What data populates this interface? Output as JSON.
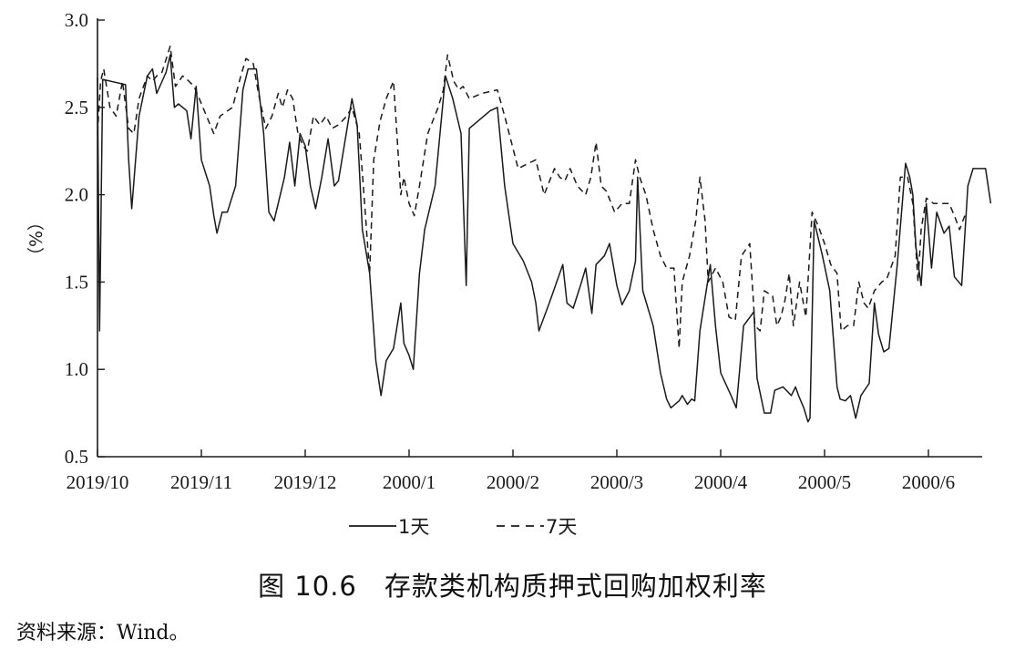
{
  "caption": "图 10.6　存款类机构质押式回购加权利率",
  "source": "资料来源：Wind。",
  "chart_data": {
    "type": "line",
    "ylabel": "（%）",
    "ylim": [
      0.5,
      3.0
    ],
    "yticks": [
      "0.5",
      "1.0",
      "1.5",
      "2.0",
      "2.5",
      "3.0"
    ],
    "xticks": [
      "2019/10",
      "2019/11",
      "2019/12",
      "2000/1",
      "2000/2",
      "2000/3",
      "2000/4",
      "2000/5",
      "2000/6"
    ],
    "grid": false,
    "legend_position": "bottom",
    "series": [
      {
        "name": "1天",
        "style": "solid",
        "points": [
          [
            0.0,
            2.67
          ],
          [
            0.02,
            1.22
          ],
          [
            0.05,
            2.66
          ],
          [
            0.27,
            2.63
          ],
          [
            0.3,
            2.2
          ],
          [
            0.33,
            1.92
          ],
          [
            0.4,
            2.45
          ],
          [
            0.48,
            2.68
          ],
          [
            0.53,
            2.72
          ],
          [
            0.57,
            2.58
          ],
          [
            0.66,
            2.7
          ],
          [
            0.7,
            2.8
          ],
          [
            0.74,
            2.5
          ],
          [
            0.78,
            2.52
          ],
          [
            0.86,
            2.48
          ],
          [
            0.9,
            2.32
          ],
          [
            0.95,
            2.62
          ],
          [
            1.0,
            2.2
          ],
          [
            1.08,
            2.05
          ],
          [
            1.12,
            1.88
          ],
          [
            1.15,
            1.78
          ],
          [
            1.2,
            1.9
          ],
          [
            1.25,
            1.9
          ],
          [
            1.33,
            2.05
          ],
          [
            1.4,
            2.6
          ],
          [
            1.45,
            2.72
          ],
          [
            1.53,
            2.72
          ],
          [
            1.6,
            2.35
          ],
          [
            1.65,
            1.9
          ],
          [
            1.7,
            1.85
          ],
          [
            1.8,
            2.1
          ],
          [
            1.85,
            2.3
          ],
          [
            1.9,
            2.05
          ],
          [
            1.95,
            2.35
          ],
          [
            2.0,
            2.28
          ],
          [
            2.05,
            2.05
          ],
          [
            2.1,
            1.92
          ],
          [
            2.16,
            2.1
          ],
          [
            2.22,
            2.32
          ],
          [
            2.28,
            2.05
          ],
          [
            2.32,
            2.08
          ],
          [
            2.45,
            2.55
          ],
          [
            2.5,
            2.4
          ],
          [
            2.55,
            1.8
          ],
          [
            2.62,
            1.55
          ],
          [
            2.68,
            1.05
          ],
          [
            2.73,
            0.85
          ],
          [
            2.78,
            1.05
          ],
          [
            2.85,
            1.12
          ],
          [
            2.92,
            1.38
          ],
          [
            2.95,
            1.15
          ],
          [
            3.0,
            1.08
          ],
          [
            3.04,
            1.0
          ],
          [
            3.1,
            1.55
          ],
          [
            3.15,
            1.8
          ],
          [
            3.25,
            2.05
          ],
          [
            3.35,
            2.68
          ],
          [
            3.42,
            2.55
          ],
          [
            3.5,
            2.35
          ],
          [
            3.55,
            1.48
          ],
          [
            3.58,
            2.38
          ],
          [
            3.78,
            2.48
          ],
          [
            3.85,
            2.5
          ],
          [
            3.92,
            2.05
          ],
          [
            4.0,
            1.72
          ],
          [
            4.1,
            1.62
          ],
          [
            4.18,
            1.5
          ],
          [
            4.22,
            1.38
          ],
          [
            4.25,
            1.22
          ],
          [
            4.35,
            1.38
          ],
          [
            4.48,
            1.6
          ],
          [
            4.52,
            1.38
          ],
          [
            4.58,
            1.35
          ],
          [
            4.65,
            1.48
          ],
          [
            4.7,
            1.58
          ],
          [
            4.76,
            1.32
          ],
          [
            4.8,
            1.6
          ],
          [
            4.88,
            1.65
          ],
          [
            4.93,
            1.72
          ],
          [
            5.0,
            1.48
          ],
          [
            5.05,
            1.37
          ],
          [
            5.12,
            1.45
          ],
          [
            5.18,
            1.62
          ],
          [
            5.2,
            2.1
          ],
          [
            5.25,
            1.45
          ],
          [
            5.35,
            1.25
          ],
          [
            5.42,
            0.98
          ],
          [
            5.48,
            0.83
          ],
          [
            5.52,
            0.78
          ],
          [
            5.6,
            0.82
          ],
          [
            5.63,
            0.85
          ],
          [
            5.68,
            0.8
          ],
          [
            5.72,
            0.83
          ],
          [
            5.75,
            0.82
          ],
          [
            5.8,
            1.22
          ],
          [
            5.9,
            1.6
          ],
          [
            5.95,
            1.25
          ],
          [
            6.0,
            0.98
          ],
          [
            6.1,
            0.85
          ],
          [
            6.15,
            0.78
          ],
          [
            6.22,
            1.25
          ],
          [
            6.32,
            1.33
          ],
          [
            6.35,
            0.95
          ],
          [
            6.42,
            0.75
          ],
          [
            6.48,
            0.75
          ],
          [
            6.52,
            0.88
          ],
          [
            6.6,
            0.9
          ],
          [
            6.68,
            0.85
          ],
          [
            6.72,
            0.9
          ],
          [
            6.75,
            0.85
          ],
          [
            6.8,
            0.78
          ],
          [
            6.84,
            0.7
          ],
          [
            6.86,
            0.72
          ],
          [
            6.9,
            1.85
          ],
          [
            6.98,
            1.65
          ],
          [
            7.05,
            1.45
          ],
          [
            7.12,
            0.9
          ],
          [
            7.15,
            0.83
          ],
          [
            7.2,
            0.82
          ],
          [
            7.25,
            0.85
          ],
          [
            7.3,
            0.72
          ],
          [
            7.35,
            0.85
          ],
          [
            7.43,
            0.92
          ],
          [
            7.48,
            1.38
          ],
          [
            7.52,
            1.2
          ],
          [
            7.57,
            1.1
          ],
          [
            7.62,
            1.12
          ],
          [
            7.7,
            1.6
          ],
          [
            7.78,
            2.18
          ],
          [
            7.82,
            2.1
          ],
          [
            7.85,
            2.0
          ],
          [
            7.88,
            1.7
          ],
          [
            7.93,
            1.48
          ],
          [
            7.98,
            1.95
          ],
          [
            8.03,
            1.58
          ],
          [
            8.08,
            1.9
          ],
          [
            8.15,
            1.78
          ],
          [
            8.2,
            1.82
          ],
          [
            8.25,
            1.53
          ],
          [
            8.32,
            1.48
          ],
          [
            8.38,
            2.05
          ],
          [
            8.43,
            2.15
          ],
          [
            8.55,
            2.15
          ],
          [
            8.6,
            1.95
          ]
        ]
      },
      {
        "name": "7天",
        "style": "dashed",
        "points": [
          [
            0.0,
            2.35
          ],
          [
            0.03,
            2.65
          ],
          [
            0.06,
            2.72
          ],
          [
            0.12,
            2.5
          ],
          [
            0.18,
            2.45
          ],
          [
            0.24,
            2.65
          ],
          [
            0.3,
            2.38
          ],
          [
            0.35,
            2.35
          ],
          [
            0.4,
            2.55
          ],
          [
            0.48,
            2.68
          ],
          [
            0.53,
            2.65
          ],
          [
            0.57,
            2.68
          ],
          [
            0.62,
            2.7
          ],
          [
            0.7,
            2.85
          ],
          [
            0.75,
            2.62
          ],
          [
            0.82,
            2.68
          ],
          [
            0.88,
            2.65
          ],
          [
            0.93,
            2.62
          ],
          [
            0.98,
            2.55
          ],
          [
            1.05,
            2.45
          ],
          [
            1.12,
            2.35
          ],
          [
            1.18,
            2.45
          ],
          [
            1.3,
            2.5
          ],
          [
            1.38,
            2.68
          ],
          [
            1.43,
            2.78
          ],
          [
            1.5,
            2.75
          ],
          [
            1.55,
            2.58
          ],
          [
            1.62,
            2.38
          ],
          [
            1.68,
            2.45
          ],
          [
            1.74,
            2.58
          ],
          [
            1.78,
            2.5
          ],
          [
            1.83,
            2.6
          ],
          [
            1.88,
            2.55
          ],
          [
            1.93,
            2.35
          ],
          [
            1.98,
            2.28
          ],
          [
            2.02,
            2.25
          ],
          [
            2.08,
            2.45
          ],
          [
            2.14,
            2.4
          ],
          [
            2.2,
            2.45
          ],
          [
            2.26,
            2.38
          ],
          [
            2.32,
            2.4
          ],
          [
            2.4,
            2.45
          ],
          [
            2.45,
            2.5
          ],
          [
            2.52,
            2.35
          ],
          [
            2.56,
            2.05
          ],
          [
            2.62,
            1.55
          ],
          [
            2.66,
            2.2
          ],
          [
            2.72,
            2.42
          ],
          [
            2.78,
            2.55
          ],
          [
            2.85,
            2.65
          ],
          [
            2.92,
            2.0
          ],
          [
            2.95,
            2.1
          ],
          [
            3.0,
            1.95
          ],
          [
            3.05,
            1.88
          ],
          [
            3.1,
            2.05
          ],
          [
            3.18,
            2.35
          ],
          [
            3.28,
            2.5
          ],
          [
            3.33,
            2.6
          ],
          [
            3.37,
            2.8
          ],
          [
            3.43,
            2.65
          ],
          [
            3.48,
            2.6
          ],
          [
            3.52,
            2.62
          ],
          [
            3.58,
            2.55
          ],
          [
            3.7,
            2.58
          ],
          [
            3.85,
            2.6
          ],
          [
            3.92,
            2.45
          ],
          [
            4.05,
            2.15
          ],
          [
            4.15,
            2.18
          ],
          [
            4.22,
            2.2
          ],
          [
            4.3,
            2.0
          ],
          [
            4.4,
            2.15
          ],
          [
            4.45,
            2.1
          ],
          [
            4.5,
            2.08
          ],
          [
            4.55,
            2.15
          ],
          [
            4.62,
            2.05
          ],
          [
            4.7,
            2.0
          ],
          [
            4.75,
            2.1
          ],
          [
            4.8,
            2.3
          ],
          [
            4.85,
            2.05
          ],
          [
            4.9,
            2.02
          ],
          [
            4.98,
            1.9
          ],
          [
            5.05,
            1.95
          ],
          [
            5.12,
            1.95
          ],
          [
            5.18,
            2.2
          ],
          [
            5.22,
            2.1
          ],
          [
            5.28,
            2.0
          ],
          [
            5.35,
            1.8
          ],
          [
            5.42,
            1.65
          ],
          [
            5.48,
            1.58
          ],
          [
            5.55,
            1.58
          ],
          [
            5.6,
            1.12
          ],
          [
            5.63,
            1.5
          ],
          [
            5.7,
            1.65
          ],
          [
            5.76,
            1.85
          ],
          [
            5.8,
            2.1
          ],
          [
            5.85,
            1.85
          ],
          [
            5.88,
            1.5
          ],
          [
            5.95,
            1.58
          ],
          [
            6.02,
            1.5
          ],
          [
            6.08,
            1.3
          ],
          [
            6.14,
            1.28
          ],
          [
            6.2,
            1.65
          ],
          [
            6.28,
            1.72
          ],
          [
            6.33,
            1.25
          ],
          [
            6.38,
            1.22
          ],
          [
            6.42,
            1.45
          ],
          [
            6.5,
            1.42
          ],
          [
            6.54,
            1.25
          ],
          [
            6.58,
            1.3
          ],
          [
            6.62,
            1.4
          ],
          [
            6.66,
            1.55
          ],
          [
            6.7,
            1.25
          ],
          [
            6.76,
            1.5
          ],
          [
            6.82,
            1.3
          ],
          [
            6.88,
            1.9
          ],
          [
            6.94,
            1.82
          ],
          [
            7.0,
            1.72
          ],
          [
            7.06,
            1.6
          ],
          [
            7.12,
            1.55
          ],
          [
            7.16,
            1.22
          ],
          [
            7.22,
            1.25
          ],
          [
            7.28,
            1.25
          ],
          [
            7.33,
            1.5
          ],
          [
            7.38,
            1.38
          ],
          [
            7.42,
            1.35
          ],
          [
            7.48,
            1.45
          ],
          [
            7.55,
            1.5
          ],
          [
            7.6,
            1.52
          ],
          [
            7.68,
            1.65
          ],
          [
            7.73,
            2.1
          ],
          [
            7.8,
            2.1
          ],
          [
            7.85,
            1.95
          ],
          [
            7.9,
            1.5
          ],
          [
            7.93,
            1.8
          ],
          [
            7.98,
            1.98
          ],
          [
            8.05,
            1.95
          ],
          [
            8.15,
            1.95
          ],
          [
            8.2,
            1.95
          ],
          [
            8.25,
            1.88
          ],
          [
            8.3,
            1.8
          ],
          [
            8.35,
            1.88
          ]
        ]
      }
    ]
  }
}
